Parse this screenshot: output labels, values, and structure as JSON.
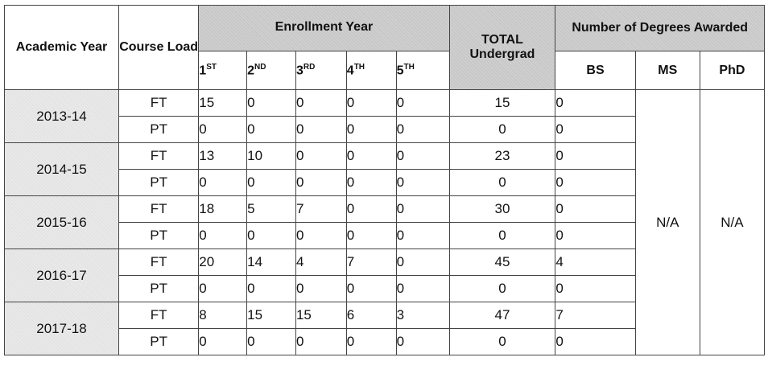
{
  "headers": {
    "academic_year": "Academic Year",
    "course_load": "Course Load",
    "enrollment_year": "Enrollment Year",
    "total_undergrad": "TOTAL Undergrad",
    "degrees_awarded": "Number of Degrees Awarded",
    "enroll_years": [
      {
        "num": "1",
        "suffix": "ST"
      },
      {
        "num": "2",
        "suffix": "ND"
      },
      {
        "num": "3",
        "suffix": "RD"
      },
      {
        "num": "4",
        "suffix": "TH"
      },
      {
        "num": "5",
        "suffix": "TH"
      }
    ],
    "bs": "BS",
    "ms": "MS",
    "phd": "PhD"
  },
  "ms_value": "N/A",
  "phd_value": "N/A",
  "rows": [
    {
      "year": "2013-14",
      "ft": {
        "load": "FT",
        "y1": "15",
        "y2": "0",
        "y3": "0",
        "y4": "0",
        "y5": "0",
        "total": "15",
        "bs": "0"
      },
      "pt": {
        "load": "PT",
        "y1": "0",
        "y2": "0",
        "y3": "0",
        "y4": "0",
        "y5": "0",
        "total": "0",
        "bs": "0"
      }
    },
    {
      "year": "2014-15",
      "ft": {
        "load": "FT",
        "y1": "13",
        "y2": "10",
        "y3": "0",
        "y4": "0",
        "y5": "0",
        "total": "23",
        "bs": "0"
      },
      "pt": {
        "load": "PT",
        "y1": "0",
        "y2": "0",
        "y3": "0",
        "y4": "0",
        "y5": "0",
        "total": "0",
        "bs": "0"
      }
    },
    {
      "year": "2015-16",
      "ft": {
        "load": "FT",
        "y1": "18",
        "y2": "5",
        "y3": "7",
        "y4": "0",
        "y5": "0",
        "total": "30",
        "bs": "0"
      },
      "pt": {
        "load": "PT",
        "y1": "0",
        "y2": "0",
        "y3": "0",
        "y4": "0",
        "y5": "0",
        "total": "0",
        "bs": "0"
      }
    },
    {
      "year": "2016-17",
      "ft": {
        "load": "FT",
        "y1": "20",
        "y2": "14",
        "y3": "4",
        "y4": "7",
        "y5": "0",
        "total": "45",
        "bs": "4"
      },
      "pt": {
        "load": "PT",
        "y1": "0",
        "y2": "0",
        "y3": "0",
        "y4": "0",
        "y5": "0",
        "total": "0",
        "bs": "0"
      }
    },
    {
      "year": "2017-18",
      "ft": {
        "load": "FT",
        "y1": "8",
        "y2": "15",
        "y3": "15",
        "y4": "6",
        "y5": "3",
        "total": "47",
        "bs": "7"
      },
      "pt": {
        "load": "PT",
        "y1": "0",
        "y2": "0",
        "y3": "0",
        "y4": "0",
        "y5": "0",
        "total": "0",
        "bs": "0"
      }
    }
  ]
}
